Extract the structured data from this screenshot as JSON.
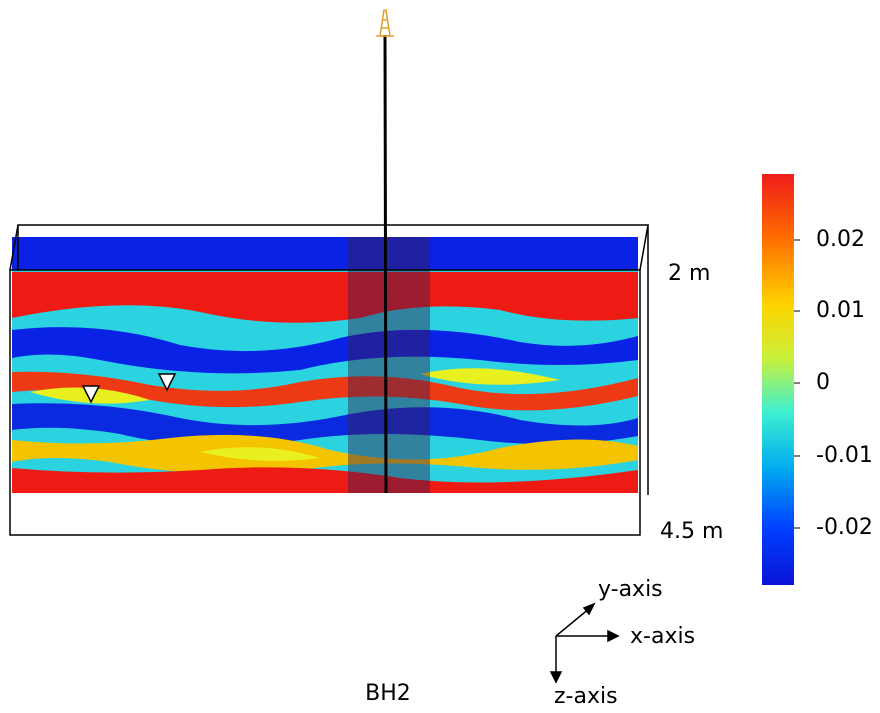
{
  "figure": {
    "depth_labels": {
      "top": "2 m",
      "bottom": "4.5 m"
    },
    "borehole_label": "BH2",
    "axes": {
      "y": "y-axis",
      "x": "x-axis",
      "z": "z-axis"
    },
    "colorbar": {
      "tick_labels": [
        "0.02",
        "0.01",
        "0",
        "-0.01",
        "-0.02"
      ]
    }
  }
}
